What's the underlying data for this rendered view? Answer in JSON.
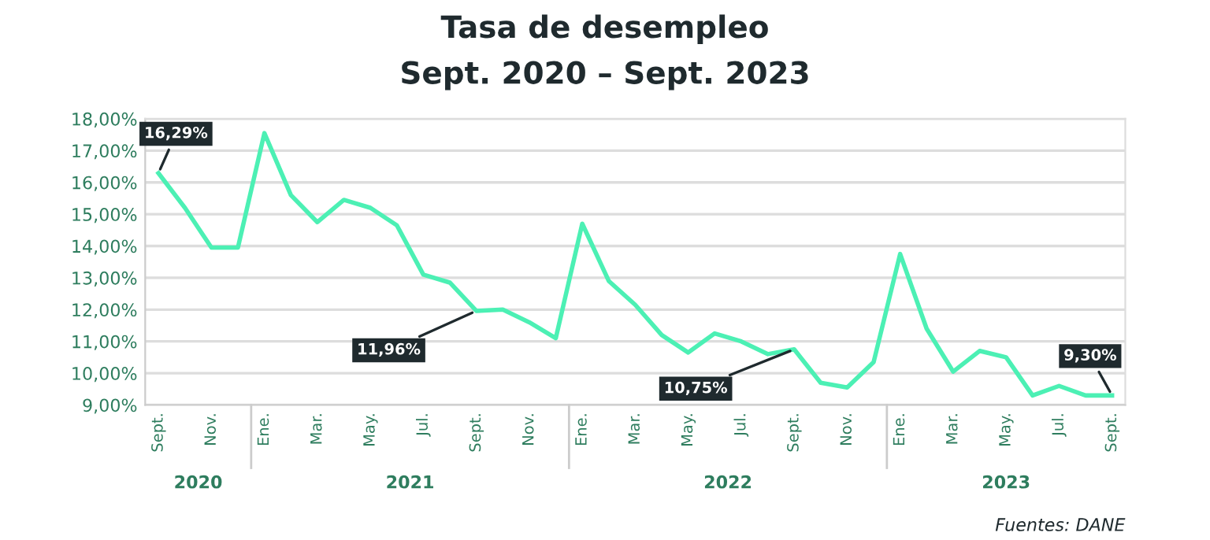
{
  "chart_data": {
    "type": "line",
    "title": "Tasa de desempleo",
    "subtitle": "Sept. 2020 – Sept. 2023",
    "categories": [
      "Sept.",
      null,
      "Nov.",
      null,
      "Ene.",
      null,
      "Mar.",
      null,
      "May.",
      null,
      "Jul.",
      null,
      "Sept.",
      null,
      "Nov.",
      null,
      "Ene.",
      null,
      "Mar.",
      null,
      "May.",
      null,
      "Jul.",
      null,
      "Sept.",
      null,
      "Nov.",
      null,
      "Ene.",
      null,
      "Mar.",
      null,
      "May.",
      null,
      "Jul.",
      null,
      "Sept."
    ],
    "series": [
      {
        "color": "#4cf0b4",
        "values": [
          16.29,
          15.2,
          13.95,
          13.95,
          17.55,
          15.6,
          14.75,
          15.45,
          15.2,
          14.65,
          13.1,
          12.85,
          11.96,
          12.0,
          11.6,
          11.1,
          14.7,
          12.9,
          12.15,
          11.2,
          10.65,
          11.25,
          11.0,
          10.6,
          10.75,
          9.7,
          9.55,
          10.35,
          13.75,
          11.4,
          10.05,
          10.7,
          10.5,
          9.3,
          9.6,
          9.3,
          9.3
        ],
        "value_labels": [
          "16,29%",
          null,
          null,
          null,
          null,
          null,
          null,
          null,
          null,
          null,
          null,
          null,
          "11,96%",
          null,
          null,
          null,
          null,
          null,
          null,
          null,
          null,
          null,
          null,
          null,
          "10,75%",
          null,
          null,
          null,
          null,
          null,
          null,
          null,
          null,
          null,
          null,
          null,
          "9,30%"
        ]
      }
    ],
    "ylim": [
      9,
      18
    ],
    "yticks": [
      {
        "value": 9,
        "label": "9,00%"
      },
      {
        "value": 10,
        "label": "10,00%"
      },
      {
        "value": 11,
        "label": "11,00%"
      },
      {
        "value": 12,
        "label": "12,00%"
      },
      {
        "value": 13,
        "label": "13,00%"
      },
      {
        "value": 14,
        "label": "14,00%"
      },
      {
        "value": 15,
        "label": "15,00%"
      },
      {
        "value": 16,
        "label": "16,00%"
      },
      {
        "value": 17,
        "label": "17,00%"
      },
      {
        "value": 18,
        "label": "18,00%"
      }
    ],
    "grid": "y",
    "marker": "none",
    "line_style": "solid",
    "annotations": [
      "2020",
      "2021",
      "2022",
      "2023",
      "Fuentes: DANE"
    ]
  }
}
